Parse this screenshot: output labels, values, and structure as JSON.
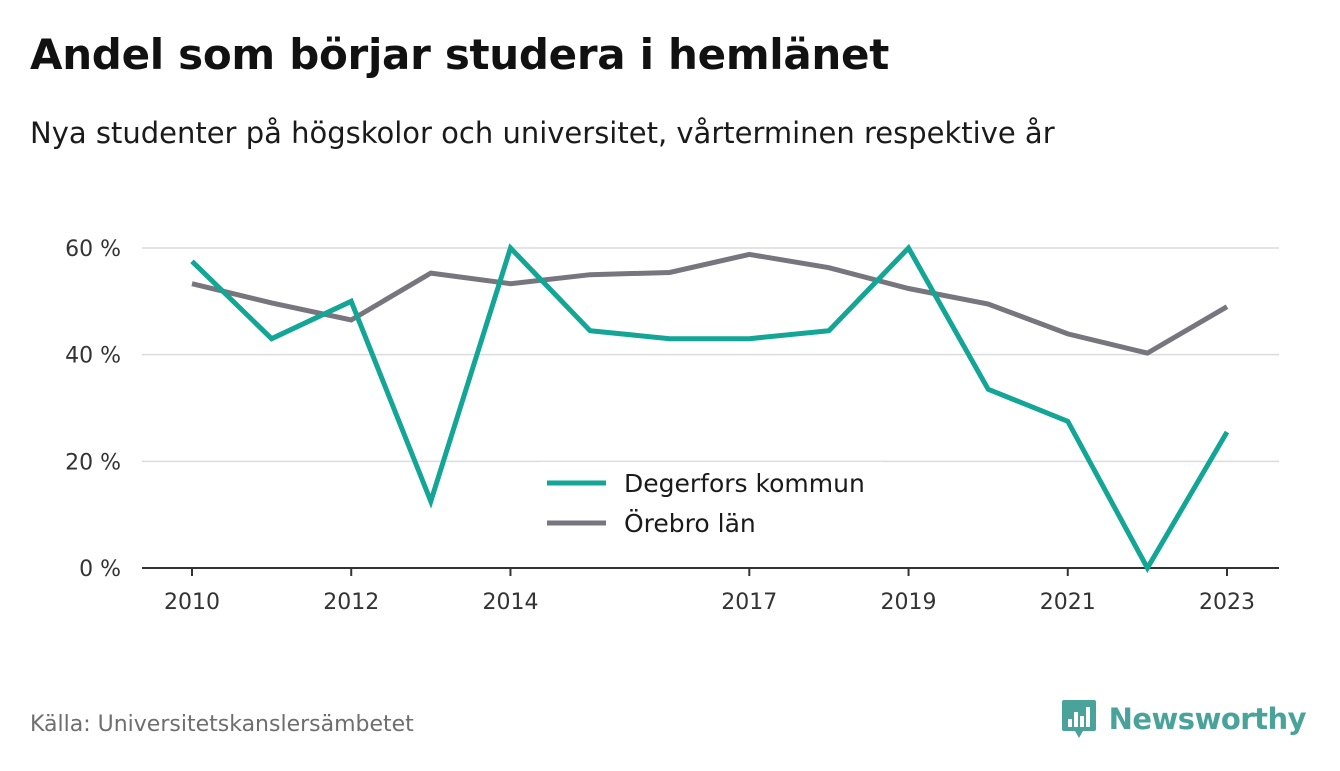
{
  "colors": {
    "degerfors": "#13a596",
    "orebro": "#77767e",
    "brand": "#4aa39a"
  },
  "source": "Källa: Universitetskanslersämbetet",
  "brand": {
    "name": "Newsworthy",
    "icon": "bar-chart-bubble-icon"
  },
  "chart_data": {
    "type": "line",
    "title": "Andel som börjar studera i hemlänet",
    "subtitle": "Nya studenter på högskolor och universitet, vårterminen respektive år",
    "x": [
      2010,
      2011,
      2012,
      2013,
      2014,
      2015,
      2016,
      2017,
      2018,
      2019,
      2020,
      2021,
      2022,
      2023
    ],
    "x_tick_labels": [
      "2010",
      "2012",
      "2014",
      "2017",
      "2019",
      "2021",
      "2023"
    ],
    "y_ticks": [
      0,
      20,
      40,
      60
    ],
    "y_tick_labels": [
      "0 %",
      "20 %",
      "40 %",
      "60 %"
    ],
    "ylim": [
      0,
      60
    ],
    "grid": true,
    "legend_position": "center-bottom",
    "series": [
      {
        "name": "Degerfors kommun",
        "values": [
          57.5,
          43,
          50,
          12.5,
          60,
          44.5,
          43,
          43,
          44.5,
          60,
          33.5,
          27.5,
          0,
          25.5
        ]
      },
      {
        "name": "Örebro län",
        "values": [
          53.3,
          49.7,
          46.5,
          55.3,
          53.3,
          55,
          55.4,
          58.8,
          56.3,
          52.4,
          49.5,
          43.9,
          40.3,
          49
        ]
      }
    ]
  }
}
